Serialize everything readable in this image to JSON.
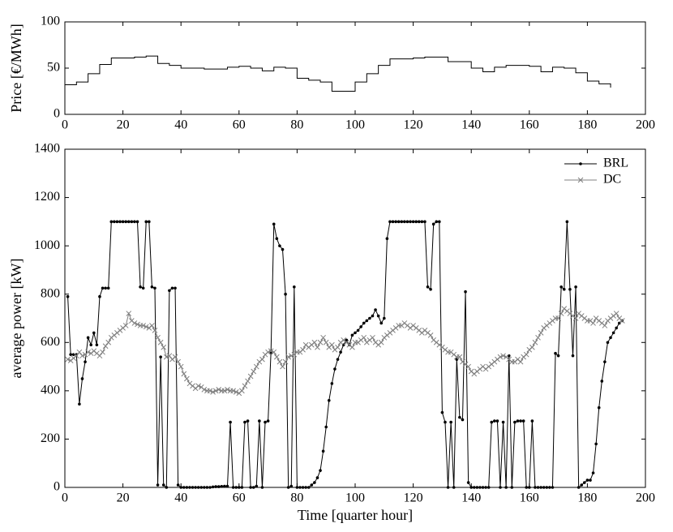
{
  "chart_data": [
    {
      "type": "line",
      "ylabel": "Price [€/MWh]",
      "drawstyle": "steps-post",
      "color": "#000000",
      "x": [
        0,
        4,
        8,
        12,
        16,
        20,
        24,
        28,
        32,
        36,
        40,
        44,
        48,
        52,
        56,
        60,
        64,
        68,
        72,
        76,
        80,
        84,
        88,
        92,
        96,
        100,
        104,
        108,
        112,
        116,
        120,
        124,
        128,
        132,
        136,
        140,
        144,
        148,
        152,
        156,
        160,
        164,
        168,
        172,
        176,
        180,
        184,
        188
      ],
      "values": [
        32,
        35,
        44,
        54,
        61,
        61,
        62,
        63,
        55,
        53,
        50,
        50,
        49,
        49,
        51,
        52,
        50,
        47,
        51,
        50,
        39,
        37,
        35,
        25,
        25,
        35,
        44,
        53,
        60,
        60,
        61,
        62,
        62,
        57,
        57,
        50,
        46,
        51,
        53,
        53,
        52,
        46,
        51,
        50,
        45,
        36,
        33,
        29
      ],
      "xlim": [
        0,
        200
      ],
      "xticks": [
        0,
        20,
        40,
        60,
        80,
        100,
        120,
        140,
        160,
        180,
        200
      ],
      "ylim": [
        0,
        100
      ],
      "yticks": [
        0,
        50,
        100
      ]
    },
    {
      "type": "line",
      "xlabel": "Time [quarter hour]",
      "ylabel": "average power [kW]",
      "legend": "upper right",
      "x": [
        1,
        2,
        3,
        4,
        5,
        6,
        7,
        8,
        9,
        10,
        11,
        12,
        13,
        14,
        15,
        16,
        17,
        18,
        19,
        20,
        21,
        22,
        23,
        24,
        25,
        26,
        27,
        28,
        29,
        30,
        31,
        32,
        33,
        34,
        35,
        36,
        37,
        38,
        39,
        40,
        41,
        42,
        43,
        44,
        45,
        46,
        47,
        48,
        49,
        50,
        51,
        52,
        53,
        54,
        55,
        56,
        57,
        58,
        59,
        60,
        61,
        62,
        63,
        64,
        65,
        66,
        67,
        68,
        69,
        70,
        71,
        72,
        73,
        74,
        75,
        76,
        77,
        78,
        79,
        80,
        81,
        82,
        83,
        84,
        85,
        86,
        87,
        88,
        89,
        90,
        91,
        92,
        93,
        94,
        95,
        96,
        97,
        98,
        99,
        100,
        101,
        102,
        103,
        104,
        105,
        106,
        107,
        108,
        109,
        110,
        111,
        112,
        113,
        114,
        115,
        116,
        117,
        118,
        119,
        120,
        121,
        122,
        123,
        124,
        125,
        126,
        127,
        128,
        129,
        130,
        131,
        132,
        133,
        134,
        135,
        136,
        137,
        138,
        139,
        140,
        141,
        142,
        143,
        144,
        145,
        146,
        147,
        148,
        149,
        150,
        151,
        152,
        153,
        154,
        155,
        156,
        157,
        158,
        159,
        160,
        161,
        162,
        163,
        164,
        165,
        166,
        167,
        168,
        169,
        170,
        171,
        172,
        173,
        174,
        175,
        176,
        177,
        178,
        179,
        180,
        181,
        182,
        183,
        184,
        185,
        186,
        187,
        188,
        189,
        190,
        191,
        192
      ],
      "series": [
        {
          "name": "BRL",
          "color": "#000000",
          "marker": "dot",
          "values": [
            790,
            550,
            550,
            550,
            345,
            450,
            520,
            620,
            590,
            640,
            590,
            790,
            825,
            825,
            825,
            1100,
            1100,
            1100,
            1100,
            1100,
            1100,
            1100,
            1100,
            1100,
            1100,
            830,
            825,
            1100,
            1100,
            830,
            825,
            10,
            540,
            10,
            0,
            815,
            825,
            825,
            10,
            0,
            0,
            0,
            0,
            0,
            0,
            0,
            0,
            0,
            0,
            0,
            2,
            3,
            3,
            4,
            5,
            5,
            270,
            0,
            0,
            0,
            0,
            270,
            275,
            0,
            0,
            5,
            275,
            0,
            270,
            275,
            560,
            1090,
            1030,
            1000,
            985,
            800,
            0,
            5,
            830,
            0,
            0,
            0,
            0,
            0,
            10,
            20,
            40,
            70,
            150,
            250,
            360,
            430,
            490,
            530,
            560,
            590,
            610,
            590,
            630,
            640,
            650,
            665,
            680,
            690,
            700,
            710,
            735,
            710,
            680,
            700,
            1030,
            1100,
            1100,
            1100,
            1100,
            1100,
            1100,
            1100,
            1100,
            1100,
            1100,
            1100,
            1100,
            1100,
            830,
            820,
            1090,
            1100,
            1100,
            310,
            270,
            0,
            270,
            0,
            530,
            290,
            280,
            810,
            20,
            0,
            0,
            0,
            0,
            0,
            0,
            0,
            270,
            275,
            275,
            0,
            270,
            0,
            545,
            0,
            270,
            275,
            275,
            275,
            0,
            0,
            275,
            0,
            0,
            0,
            0,
            0,
            0,
            0,
            555,
            545,
            830,
            820,
            1100,
            820,
            545,
            830,
            0,
            10,
            20,
            30,
            30,
            60,
            180,
            330,
            440,
            520,
            600,
            620,
            640,
            660,
            680,
            690
          ]
        },
        {
          "name": "DC",
          "color": "#808080",
          "marker": "x",
          "values": [
            530,
            525,
            535,
            545,
            560,
            545,
            550,
            560,
            555,
            565,
            555,
            545,
            560,
            585,
            600,
            620,
            630,
            640,
            650,
            660,
            670,
            720,
            690,
            680,
            675,
            670,
            670,
            665,
            660,
            670,
            650,
            620,
            600,
            580,
            540,
            545,
            530,
            540,
            520,
            500,
            470,
            450,
            430,
            420,
            410,
            420,
            415,
            405,
            400,
            400,
            395,
            400,
            405,
            400,
            400,
            405,
            400,
            400,
            395,
            390,
            400,
            420,
            440,
            460,
            480,
            500,
            520,
            530,
            550,
            560,
            565,
            560,
            540,
            520,
            500,
            520,
            540,
            545,
            550,
            560,
            560,
            570,
            590,
            580,
            590,
            600,
            580,
            600,
            620,
            600,
            580,
            590,
            570,
            580,
            600,
            610,
            600,
            590,
            580,
            600,
            600,
            610,
            620,
            600,
            610,
            620,
            600,
            590,
            600,
            620,
            630,
            640,
            650,
            660,
            670,
            670,
            680,
            670,
            660,
            670,
            660,
            650,
            640,
            650,
            640,
            630,
            610,
            600,
            590,
            580,
            570,
            560,
            560,
            550,
            540,
            540,
            520,
            510,
            500,
            480,
            470,
            480,
            490,
            500,
            490,
            500,
            510,
            520,
            530,
            540,
            545,
            540,
            530,
            520,
            520,
            530,
            520,
            540,
            550,
            570,
            580,
            600,
            620,
            640,
            660,
            670,
            680,
            690,
            700,
            700,
            720,
            740,
            730,
            720,
            710,
            700,
            720,
            710,
            700,
            690,
            690,
            680,
            700,
            690,
            680,
            670,
            690,
            700,
            710,
            720,
            700,
            690
          ]
        }
      ],
      "xlim": [
        0,
        200
      ],
      "xticks": [
        0,
        20,
        40,
        60,
        80,
        100,
        120,
        140,
        160,
        180,
        200
      ],
      "ylim": [
        0,
        1400
      ],
      "yticks": [
        0,
        200,
        400,
        600,
        800,
        1000,
        1200,
        1400
      ]
    }
  ]
}
